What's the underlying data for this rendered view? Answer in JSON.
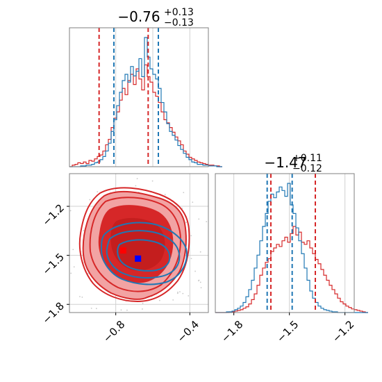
{
  "colors": {
    "red": "#d62728",
    "red_fill_light": "#f2a3a3",
    "red_fill_dark": "#d62728",
    "blue": "#1f77b4",
    "grid": "#d0d0d0",
    "frame": "#7f7f7f",
    "marker_red": "#ff0000",
    "marker_blue": "#0000ff"
  },
  "chart_data": [
    {
      "id": "hist-param1",
      "type": "histogram",
      "title": {
        "value": "−0.76",
        "sup": "+0.13",
        "sub": "−0.13"
      },
      "xlim": [
        -1.05,
        -0.3
      ],
      "grid": true,
      "series": [
        {
          "color_key": "red",
          "bin_start": -1.05,
          "bin_width": 0.015,
          "counts": [
            0,
            2,
            3,
            5,
            4,
            6,
            4,
            8,
            7,
            10,
            13,
            15,
            20,
            28,
            35,
            50,
            62,
            70,
            85,
            100,
            92,
            110,
            118,
            105,
            125,
            112,
            98,
            130,
            115,
            108,
            95,
            90,
            82,
            70,
            60,
            56,
            50,
            44,
            38,
            33,
            28,
            20,
            16,
            12,
            10,
            8,
            6,
            5,
            4,
            3,
            2,
            2,
            1,
            1,
            0
          ],
          "quantiles": [
            -0.89,
            -0.625
          ]
        },
        {
          "color_key": "blue",
          "bin_start": -1.05,
          "bin_width": 0.015,
          "counts": [
            0,
            0,
            0,
            0,
            1,
            1,
            2,
            2,
            3,
            5,
            6,
            9,
            13,
            20,
            30,
            45,
            60,
            78,
            95,
            110,
            118,
            108,
            128,
            116,
            122,
            138,
            115,
            165,
            140,
            125,
            118,
            112,
            100,
            82,
            70,
            55,
            45,
            40,
            34,
            27,
            22,
            17,
            12,
            9,
            6,
            5,
            3,
            3,
            2,
            2,
            1,
            1,
            1,
            0,
            0
          ],
          "quantiles": [
            -0.81,
            -0.57
          ]
        }
      ]
    },
    {
      "id": "hist-param2",
      "type": "histogram",
      "title": {
        "value": "−1.47",
        "sup": "+0.11",
        "sub": "−0.12"
      },
      "xlim": [
        -1.9,
        -1.15
      ],
      "grid": true,
      "series": [
        {
          "color_key": "red",
          "bin_start": -1.9,
          "bin_width": 0.015,
          "counts": [
            0,
            0,
            0,
            0,
            0,
            1,
            1,
            2,
            3,
            4,
            6,
            8,
            12,
            18,
            26,
            38,
            52,
            62,
            70,
            75,
            85,
            90,
            95,
            92,
            100,
            105,
            98,
            110,
            120,
            108,
            112,
            98,
            95,
            100,
            90,
            82,
            74,
            68,
            60,
            52,
            45,
            38,
            32,
            26,
            20,
            15,
            12,
            9,
            7,
            5,
            4,
            3,
            2,
            1,
            0
          ],
          "quantiles": [
            -1.6,
            -1.36
          ]
        },
        {
          "color_key": "blue",
          "bin_start": -1.9,
          "bin_width": 0.015,
          "counts": [
            0,
            0,
            0,
            0,
            1,
            1,
            2,
            4,
            6,
            9,
            14,
            22,
            32,
            45,
            62,
            80,
            100,
            120,
            138,
            155,
            165,
            160,
            168,
            175,
            170,
            162,
            180,
            150,
            138,
            118,
            100,
            82,
            62,
            45,
            30,
            20,
            14,
            9,
            6,
            4,
            3,
            2,
            1,
            1,
            0,
            0,
            0,
            0,
            0,
            0,
            0,
            0,
            0,
            0,
            0
          ],
          "quantiles": [
            -1.62,
            -1.485
          ]
        }
      ]
    },
    {
      "id": "scatter-2d",
      "type": "contour",
      "xlim": [
        -1.05,
        -0.3
      ],
      "ylim": [
        -1.85,
        -1.0
      ],
      "grid": true,
      "points": [
        [
          -0.76,
          -1.47
        ],
        [
          -0.68,
          -1.52
        ]
      ],
      "xticks": [
        -0.8,
        -0.4
      ],
      "yticks": [
        -1.2,
        -1.5,
        -1.8
      ]
    }
  ],
  "axes": {
    "x_ticks_bottom_left": [
      "−0.8",
      "−0.4"
    ],
    "y_ticks_bottom_left": [
      "−1.2",
      "−1.5",
      "−1.8"
    ],
    "x_ticks_bottom_right": [
      "−1.8",
      "−1.5",
      "−1.2"
    ]
  }
}
